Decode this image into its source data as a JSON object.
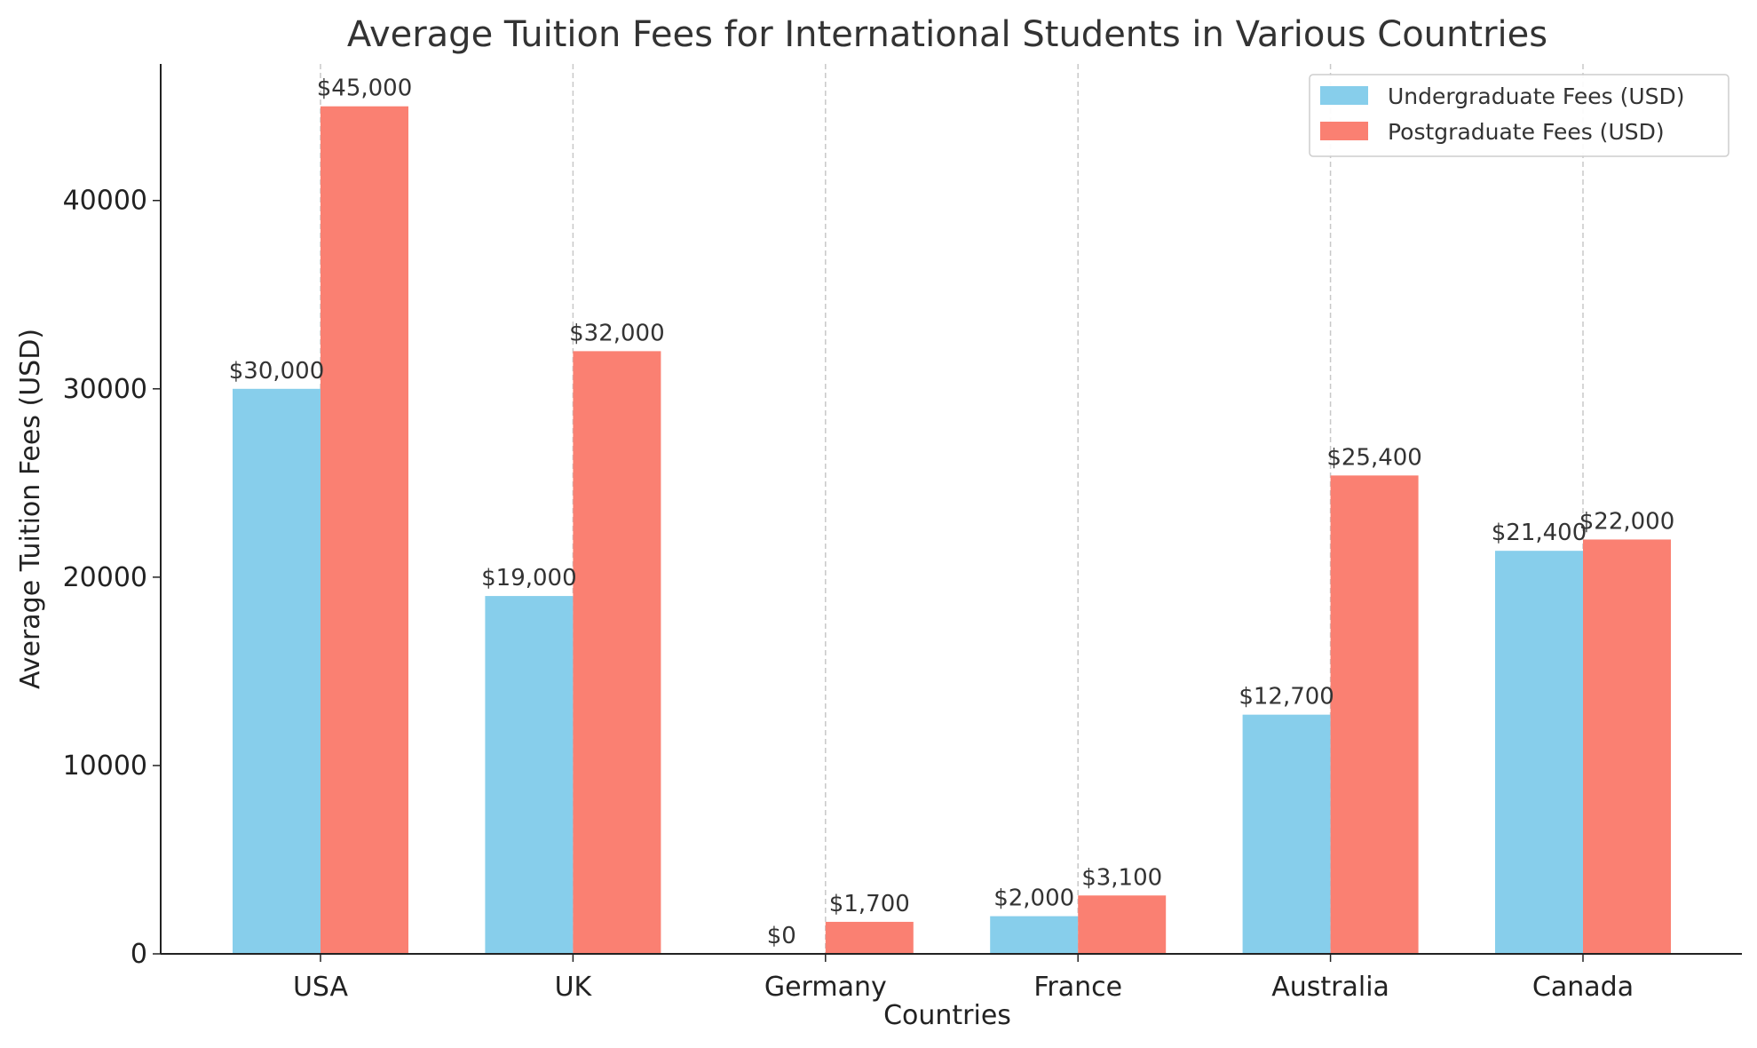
{
  "chart_data": {
    "type": "bar",
    "title": "Average Tuition Fees for International Students in Various Countries",
    "xlabel": "Countries",
    "ylabel": "Average Tuition Fees (USD)",
    "categories": [
      "USA",
      "UK",
      "Germany",
      "France",
      "Australia",
      "Canada"
    ],
    "series": [
      {
        "name": "Undergraduate Fees (USD)",
        "color": "#87CEEB",
        "values": [
          30000,
          19000,
          0,
          2000,
          12700,
          21400
        ],
        "labels": [
          "$30,000",
          "$19,000",
          "$0",
          "$2,000",
          "$12,700",
          "$21,400"
        ]
      },
      {
        "name": "Postgraduate Fees (USD)",
        "color": "#FA8072",
        "values": [
          45000,
          32000,
          1700,
          3100,
          25400,
          22000
        ],
        "labels": [
          "$45,000",
          "$32,000",
          "$1,700",
          "$3,100",
          "$25,400",
          "$22,000"
        ]
      }
    ],
    "ylim": [
      0,
      47250
    ],
    "yticks": [
      "0",
      "10000",
      "20000",
      "30000",
      "40000"
    ],
    "grid": "vertical dashed at categories",
    "legend": "top-right"
  }
}
